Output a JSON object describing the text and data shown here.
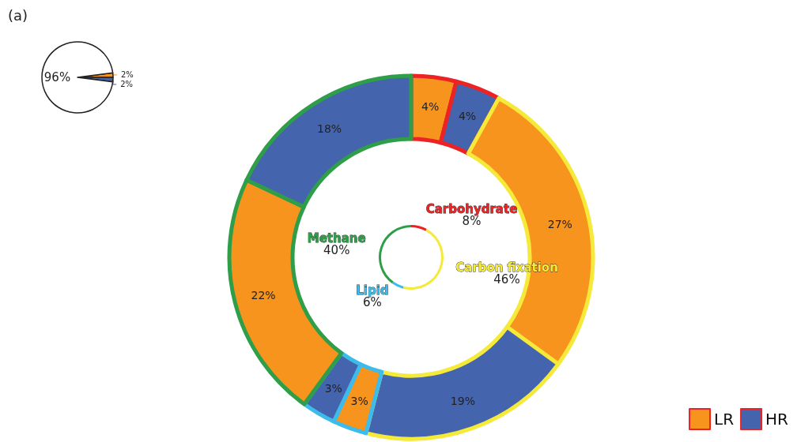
{
  "chart_data": [
    {
      "type": "pie",
      "annotations": [
        "(a)"
      ],
      "categories": [
        null,
        null,
        null
      ],
      "values": [
        2,
        2,
        96
      ],
      "colors": [
        "#f7941d",
        "#4464ad",
        "#ffffff"
      ],
      "value_labels": [
        "2%",
        "2%",
        "96%"
      ]
    },
    {
      "type": "donut",
      "categories": [
        "Carbohydrate",
        "Carbon fixation",
        "Lipid",
        "Methane"
      ],
      "values": [
        8,
        46,
        6,
        40
      ],
      "colors": [
        "#ed2224",
        "#f5e93a",
        "#3dbbea",
        "#2e9e48"
      ],
      "value_labels": [
        "8%",
        "46%",
        "6%",
        "40%"
      ]
    },
    {
      "type": "donut",
      "legend": "bottom right",
      "categories": [
        "LR",
        "HR",
        null,
        null,
        null,
        null,
        null,
        null
      ],
      "values": [
        4,
        4,
        27,
        19,
        3,
        3,
        22,
        18
      ],
      "colors": [
        "#f7941d",
        "#4464ad",
        "#f7941d",
        "#4464ad",
        "#f7941d",
        "#4464ad",
        "#f7941d",
        "#4464ad"
      ],
      "value_labels": [
        "4%",
        "4%",
        "27%",
        "19%",
        "3%",
        "3%",
        "22%",
        "18%"
      ]
    }
  ]
}
